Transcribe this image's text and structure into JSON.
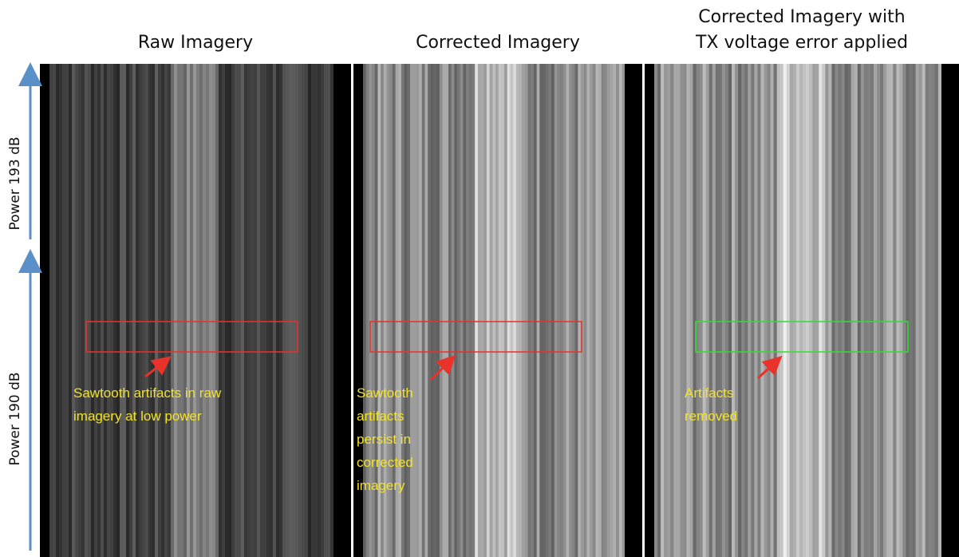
{
  "panels": [
    {
      "title": [
        "Raw Imagery"
      ],
      "box_color": "#e8322a",
      "annotation": [
        "Sawtooth artifacts in raw",
        "imagery at low power"
      ]
    },
    {
      "title": [
        "Corrected Imagery"
      ],
      "box_color": "#e8322a",
      "annotation": [
        "Sawtooth",
        "artifacts",
        "persist in",
        "corrected",
        "imagery"
      ]
    },
    {
      "title": [
        "Corrected Imagery with",
        "TX voltage error applied"
      ],
      "box_color": "#33dd33",
      "annotation": [
        "Artifacts",
        "removed"
      ]
    }
  ],
  "side_labels": [
    "Power 193 dB",
    "Power 190 dB"
  ]
}
